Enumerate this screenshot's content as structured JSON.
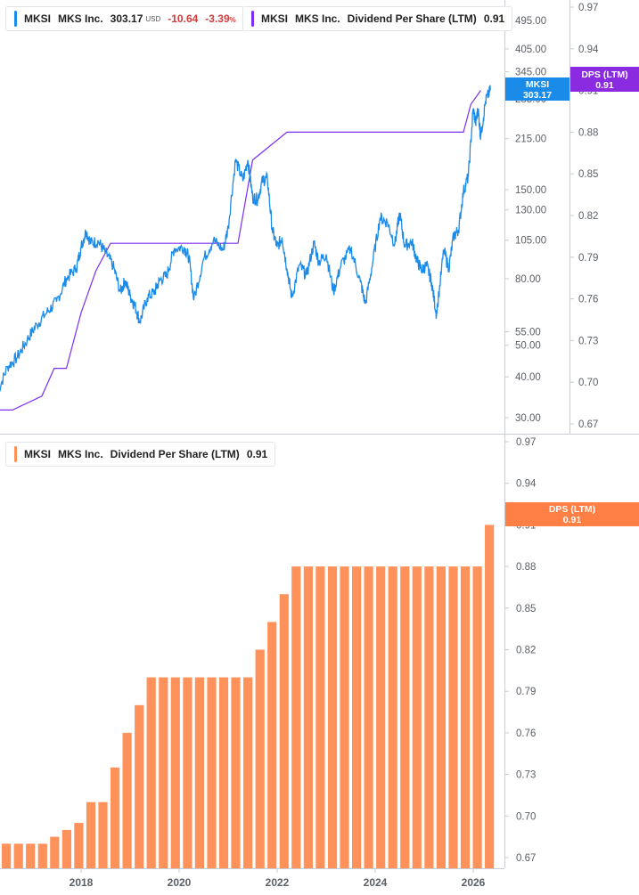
{
  "colors": {
    "price": "#1a8be8",
    "dps_line": "#7b2ff0",
    "dps_bar": "#ff915a",
    "dps_tag_top": "#8a2be2",
    "dps_tag_bottom": "#ff7f45",
    "negative": "#d23b3b",
    "axis": "#c9ccd1"
  },
  "legend_price": {
    "ticker": "MKSI",
    "company": "MKS Inc.",
    "price": "303.17",
    "currency": "USD",
    "change": "-10.64",
    "change_pct": "-3.39",
    "pct_sign": "%"
  },
  "legend_dps_top": {
    "ticker": "MKSI",
    "company": "MKS Inc.",
    "metric": "Dividend Per Share (LTM)",
    "value": "0.91"
  },
  "legend_dps_bottom": {
    "ticker": "MKSI",
    "company": "MKS Inc.",
    "metric": "Dividend Per Share (LTM)",
    "value": "0.91"
  },
  "tags": {
    "price_tag": {
      "line1": "MKSI",
      "line2": "303.17"
    },
    "dps_tag_top": {
      "line1": "DPS (LTM)",
      "line2": "0.91"
    },
    "dps_tag_bottom": {
      "line1": "DPS (LTM)",
      "line2": "0.91"
    }
  },
  "chart_data": [
    {
      "type": "line",
      "scale": "log",
      "series": [
        {
          "name": "MKSI",
          "x": [
            2016.3,
            2016.5,
            2016.7,
            2016.9,
            2017.1,
            2017.3,
            2017.5,
            2017.7,
            2017.9,
            2018.0,
            2018.1,
            2018.2,
            2018.35,
            2018.5,
            2018.65,
            2018.8,
            2018.9,
            2019.0,
            2019.1,
            2019.2,
            2019.35,
            2019.5,
            2019.6,
            2019.75,
            2019.9,
            2020.1,
            2020.2,
            2020.3,
            2020.5,
            2020.7,
            2020.9,
            2021.0,
            2021.15,
            2021.3,
            2021.4,
            2021.5,
            2021.6,
            2021.7,
            2021.8,
            2021.9,
            2022.0,
            2022.1,
            2022.2,
            2022.3,
            2022.45,
            2022.6,
            2022.75,
            2022.85,
            2023.0,
            2023.15,
            2023.3,
            2023.5,
            2023.7,
            2023.8,
            2023.95,
            2024.1,
            2024.25,
            2024.4,
            2024.5,
            2024.6,
            2024.75,
            2024.85,
            2024.95,
            2025.05,
            2025.15,
            2025.25,
            2025.4,
            2025.5,
            2025.6,
            2025.7,
            2025.8,
            2025.9,
            2026.0,
            2026.05,
            2026.1,
            2026.15,
            2026.25,
            2026.35
          ],
          "values": [
            36,
            43,
            46,
            52,
            58,
            63,
            68,
            80,
            86,
            100,
            112,
            103,
            104,
            96,
            88,
            73,
            79,
            71,
            66,
            59,
            70,
            73,
            79,
            82,
            99,
            100,
            93,
            69,
            92,
            105,
            98,
            115,
            185,
            160,
            185,
            142,
            140,
            160,
            162,
            113,
            100,
            107,
            86,
            70,
            88,
            82,
            103,
            90,
            95,
            73,
            88,
            99,
            78,
            67,
            90,
            123,
            119,
            102,
            127,
            101,
            104,
            91,
            85,
            88,
            78,
            62,
            98,
            86,
            108,
            113,
            148,
            165,
            265,
            240,
            265,
            217,
            280,
            303
          ]
        },
        {
          "name": "Dividend Per Share (LTM)",
          "axis": "right",
          "x": [
            2016.3,
            2016.6,
            2017.2,
            2017.45,
            2017.7,
            2018.0,
            2018.3,
            2018.6,
            2018.9,
            2019.2,
            2020.0,
            2020.4,
            2020.8,
            2021.2,
            2021.5,
            2022.2,
            2022.7,
            2025.8,
            2025.95,
            2026.15
          ],
          "values": [
            0.68,
            0.68,
            0.69,
            0.71,
            0.71,
            0.75,
            0.78,
            0.8,
            0.8,
            0.8,
            0.8,
            0.8,
            0.8,
            0.8,
            0.86,
            0.88,
            0.88,
            0.88,
            0.9,
            0.91
          ]
        }
      ],
      "yticks_left": [
        "495.00",
        "405.00",
        "345.00",
        "285.00",
        "215.00",
        "150.00",
        "130.00",
        "105.00",
        "80.00",
        "55.00",
        "50.00",
        "40.00",
        "30.00"
      ],
      "yticks_right": [
        "0.97",
        "0.94",
        "0.91",
        "0.88",
        "0.85",
        "0.82",
        "0.79",
        "0.76",
        "0.73",
        "0.70",
        "0.67"
      ],
      "grid": false
    },
    {
      "type": "bar",
      "series": [
        {
          "name": "Dividend Per Share (LTM)",
          "values": [
            0.68,
            0.68,
            0.68,
            0.68,
            0.685,
            0.69,
            0.695,
            0.71,
            0.71,
            0.735,
            0.76,
            0.78,
            0.8,
            0.8,
            0.8,
            0.8,
            0.8,
            0.8,
            0.8,
            0.8,
            0.8,
            0.82,
            0.84,
            0.86,
            0.88,
            0.88,
            0.88,
            0.88,
            0.88,
            0.88,
            0.88,
            0.88,
            0.88,
            0.88,
            0.88,
            0.88,
            0.88,
            0.88,
            0.88,
            0.88,
            0.91
          ]
        }
      ],
      "yticks": [
        "0.97",
        "0.94",
        "0.91",
        "0.88",
        "0.85",
        "0.82",
        "0.79",
        "0.76",
        "0.73",
        "0.70",
        "0.67"
      ],
      "xticks": [
        "2018",
        "2020",
        "2022",
        "2024",
        "2026"
      ],
      "grid": false
    }
  ]
}
